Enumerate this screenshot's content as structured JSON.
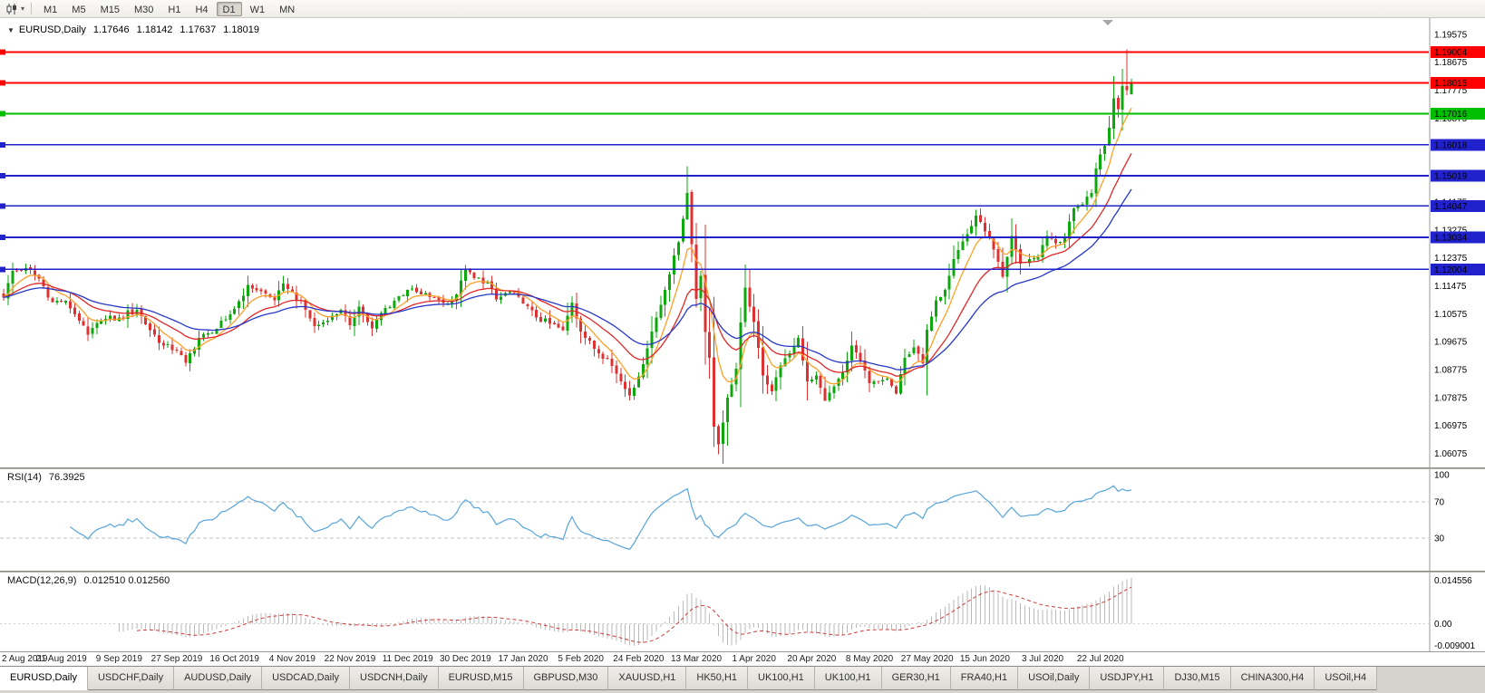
{
  "toolbar": {
    "chart_type_icon": "candlestick-chart",
    "dropdown_icon": "▾",
    "timeframes": [
      "M1",
      "M5",
      "M15",
      "M30",
      "H1",
      "H4",
      "D1",
      "W1",
      "MN"
    ],
    "active_timeframe": "D1"
  },
  "quote": {
    "collapse_icon": "▼",
    "symbol": "EURUSD,Daily",
    "open": "1.17646",
    "high": "1.18142",
    "low": "1.17637",
    "close": "1.18019"
  },
  "colors": {
    "up_candle": "#0CA80C",
    "down_candle": "#DE3131",
    "ma_fast": "#FFA028",
    "ma_mid": "#E02828",
    "ma_slow": "#2638C8",
    "level_red": "#FE0000",
    "level_green": "#00BE00",
    "level_blue": "#2222CC",
    "rsi_line": "#57A5DB",
    "macd_hist": "#BABABA",
    "macd_signal": "#CE3B3B"
  },
  "levels": [
    {
      "label": "1.19004",
      "price": 1.19004,
      "color_key": "level_red"
    },
    {
      "label": "1.18015",
      "price": 1.18015,
      "color_key": "level_red"
    },
    {
      "label": "1.17016",
      "price": 1.17016,
      "color_key": "level_green"
    },
    {
      "label": "1.16018",
      "price": 1.16018,
      "color_key": "level_blue"
    },
    {
      "label": "1.15019",
      "price": 1.15019,
      "color_key": "level_blue"
    },
    {
      "label": "1.14047",
      "price": 1.14047,
      "color_key": "level_blue"
    },
    {
      "label": "1.13034",
      "price": 1.13034,
      "color_key": "level_blue"
    },
    {
      "label": "1.12004",
      "price": 1.12004,
      "color_key": "level_blue"
    }
  ],
  "price_axis": {
    "labels": [
      "1.19575",
      "1.18675",
      "1.17775",
      "1.16875",
      "1.15975",
      "1.15075",
      "1.14175",
      "1.13275",
      "1.12375",
      "1.11475",
      "1.10575",
      "1.09675",
      "1.08775",
      "1.07875",
      "1.06975",
      "1.06075"
    ]
  },
  "rsi_panel": {
    "label": "RSI(14)",
    "value": "76.3925",
    "levels": [
      70,
      30
    ],
    "axis_labels": [
      {
        "text": "100",
        "value": 100
      },
      {
        "text": "70",
        "value": 70
      },
      {
        "text": "30",
        "value": 30
      }
    ]
  },
  "macd_panel": {
    "label": "MACD(12,26,9)",
    "value": "0.012510 0.012560",
    "axis_top": "0.014556",
    "axis_zero": "0.00",
    "axis_bottom": "-0.009001"
  },
  "date_axis": [
    "2 Aug 2019",
    "21 Aug 2019",
    "9 Sep 2019",
    "27 Sep 2019",
    "16 Oct 2019",
    "4 Nov 2019",
    "22 Nov 2019",
    "11 Dec 2019",
    "30 Dec 2019",
    "17 Jan 2020",
    "5 Feb 2020",
    "24 Feb 2020",
    "13 Mar 2020",
    "1 Apr 2020",
    "20 Apr 2020",
    "8 May 2020",
    "27 May 2020",
    "15 Jun 2020",
    "3 Jul 2020",
    "22 Jul 2020"
  ],
  "tabs": [
    "EURUSD,Daily",
    "USDCHF,Daily",
    "AUDUSD,Daily",
    "USDCAD,Daily",
    "USDCNH,Daily",
    "EURUSD,M15",
    "GBPUSD,M30",
    "XAUUSD,H1",
    "HK50,H1",
    "UK100,H1",
    "UK100,H1",
    "GER30,H1",
    "FRA40,H1",
    "USOil,Daily",
    "USDJPY,H1",
    "DJ30,M15",
    "CHINA300,H4",
    "USOil,H4"
  ],
  "active_tab": "EURUSD,Daily",
  "chart_data": {
    "type": "candlestick",
    "symbol": "EURUSD",
    "timeframe": "Daily",
    "num_candles": 255,
    "date_tick_step": 13,
    "price_min": 1.058,
    "price_max": 1.1992,
    "close_anchors": [
      [
        0,
        1.111
      ],
      [
        2,
        1.1195
      ],
      [
        5,
        1.1205
      ],
      [
        8,
        1.117
      ],
      [
        11,
        1.1095
      ],
      [
        14,
        1.11
      ],
      [
        17,
        1.1035
      ],
      [
        19,
        1.099
      ],
      [
        22,
        1.1035
      ],
      [
        26,
        1.1045
      ],
      [
        30,
        1.107
      ],
      [
        33,
        1.1005
      ],
      [
        36,
        1.0955
      ],
      [
        39,
        1.094
      ],
      [
        41,
        1.09
      ],
      [
        44,
        1.098
      ],
      [
        47,
        1.0995
      ],
      [
        50,
        1.104
      ],
      [
        52,
        1.1073
      ],
      [
        55,
        1.115
      ],
      [
        58,
        1.113
      ],
      [
        61,
        1.11
      ],
      [
        63,
        1.1155
      ],
      [
        65,
        1.1128
      ],
      [
        68,
        1.107
      ],
      [
        70,
        1.1018
      ],
      [
        73,
        1.1035
      ],
      [
        76,
        1.107
      ],
      [
        78,
        1.102
      ],
      [
        80,
        1.108
      ],
      [
        83,
        1.101
      ],
      [
        85,
        1.106
      ],
      [
        88,
        1.11
      ],
      [
        91,
        1.1135
      ],
      [
        94,
        1.112
      ],
      [
        97,
        1.111
      ],
      [
        100,
        1.109
      ],
      [
        102,
        1.112
      ],
      [
        104,
        1.12
      ],
      [
        106,
        1.1172
      ],
      [
        109,
        1.116
      ],
      [
        111,
        1.1103
      ],
      [
        114,
        1.113
      ],
      [
        117,
        1.109
      ],
      [
        120,
        1.1045
      ],
      [
        123,
        1.1025
      ],
      [
        126,
        1.1005
      ],
      [
        128,
        1.1094
      ],
      [
        130,
        1.1
      ],
      [
        133,
        1.0945
      ],
      [
        136,
        1.0912
      ],
      [
        139,
        1.084
      ],
      [
        141,
        1.0795
      ],
      [
        143,
        1.0855
      ],
      [
        146,
        1.1
      ],
      [
        149,
        1.1135
      ],
      [
        152,
        1.1288
      ],
      [
        154,
        1.1447
      ],
      [
        155,
        1.1281
      ],
      [
        156,
        1.1105
      ],
      [
        157,
        1.118
      ],
      [
        158,
        1.0998
      ],
      [
        159,
        1.0915
      ],
      [
        160,
        1.0693
      ],
      [
        161,
        1.0637
      ],
      [
        163,
        1.0787
      ],
      [
        165,
        1.0881
      ],
      [
        166,
        1.103
      ],
      [
        167,
        1.1141
      ],
      [
        169,
        1.1031
      ],
      [
        171,
        1.0859
      ],
      [
        173,
        1.0808
      ],
      [
        175,
        1.089
      ],
      [
        177,
        1.093
      ],
      [
        179,
        1.098
      ],
      [
        181,
        1.084
      ],
      [
        183,
        1.0858
      ],
      [
        185,
        1.0777
      ],
      [
        187,
        1.0823
      ],
      [
        189,
        1.087
      ],
      [
        191,
        1.0955
      ],
      [
        193,
        1.0906
      ],
      [
        195,
        1.0834
      ],
      [
        197,
        1.0838
      ],
      [
        199,
        1.0848
      ],
      [
        201,
        1.08
      ],
      [
        203,
        1.0916
      ],
      [
        205,
        1.0949
      ],
      [
        207,
        1.0898
      ],
      [
        208,
        1.1006
      ],
      [
        210,
        1.1101
      ],
      [
        212,
        1.1134
      ],
      [
        214,
        1.1233
      ],
      [
        216,
        1.1291
      ],
      [
        218,
        1.134
      ],
      [
        219,
        1.1373
      ],
      [
        221,
        1.1323
      ],
      [
        223,
        1.1264
      ],
      [
        225,
        1.1177
      ],
      [
        227,
        1.1308
      ],
      [
        229,
        1.1219
      ],
      [
        231,
        1.1234
      ],
      [
        233,
        1.124
      ],
      [
        235,
        1.1308
      ],
      [
        237,
        1.1284
      ],
      [
        239,
        1.13
      ],
      [
        241,
        1.1397
      ],
      [
        243,
        1.141
      ],
      [
        245,
        1.1446
      ],
      [
        246,
        1.1525
      ],
      [
        247,
        1.1571
      ],
      [
        248,
        1.1598
      ],
      [
        249,
        1.1656
      ],
      [
        250,
        1.1752
      ],
      [
        251,
        1.1717
      ],
      [
        252,
        1.179
      ],
      [
        253,
        1.1778
      ],
      [
        254,
        1.18019
      ]
    ],
    "special_candles": [
      {
        "i": 253,
        "o": 1.179,
        "h": 1.1909,
        "l": 1.1762,
        "c": 1.1778
      },
      {
        "i": 254,
        "o": 1.17646,
        "h": 1.18142,
        "l": 1.17637,
        "c": 1.18019
      }
    ],
    "moving_averages": [
      {
        "name": "fast",
        "type": "ema",
        "period": 7,
        "color_key": "ma_fast"
      },
      {
        "name": "mid",
        "type": "ema",
        "period": 18,
        "color_key": "ma_mid"
      },
      {
        "name": "slow",
        "type": "ema",
        "period": 32,
        "color_key": "ma_slow"
      }
    ],
    "indicators": [
      {
        "name": "RSI",
        "period": 14,
        "current": 76.3925
      },
      {
        "name": "MACD",
        "fast": 12,
        "slow": 26,
        "signal": 9,
        "current_macd": 0.01251,
        "current_signal": 0.01256
      }
    ]
  }
}
